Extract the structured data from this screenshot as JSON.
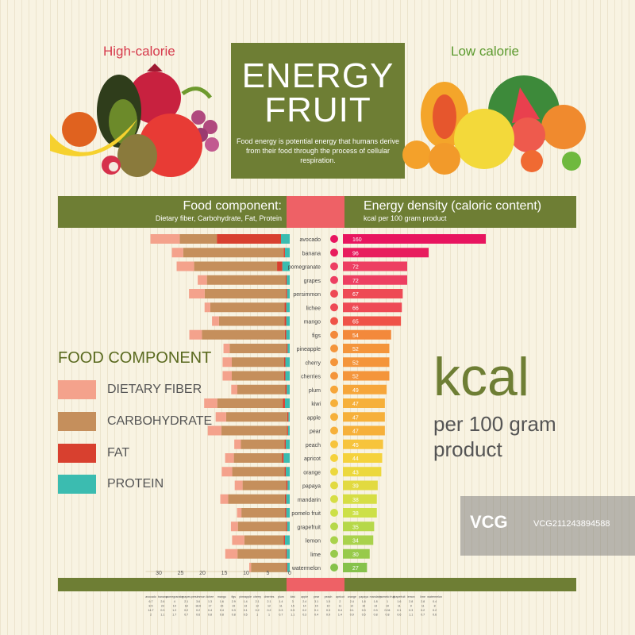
{
  "header": {
    "high_calorie": "High-calorie",
    "low_calorie": "Low calorie",
    "title_line1": "ENERGY",
    "title_line2": "FRUIT",
    "subtitle": "Food energy is potential energy that humans derive from their food through the process of cellular respiration."
  },
  "band": {
    "left_title": "Food component:",
    "left_sub": "Dietary fiber, Carbohydrate, Fat, Protein",
    "right_title": "Energy density (caloric content)",
    "right_sub": "kcal per 100 gram product"
  },
  "legend": {
    "title": "FOOD COMPONENT",
    "items": [
      {
        "label": "DIETARY FIBER",
        "color": "#f4a28c"
      },
      {
        "label": "CARBOHYDRATE",
        "color": "#c58f5c"
      },
      {
        "label": "FAT",
        "color": "#d8402f"
      },
      {
        "label": "PROTEIN",
        "color": "#3bbcb0"
      }
    ]
  },
  "kcal": {
    "big": "kcal",
    "sub": "per 100 gram product"
  },
  "watermark": {
    "logo": "VCG",
    "id": "VCG211243894588"
  },
  "chart_data": {
    "type": "bar",
    "categories": [
      "avocado",
      "banana",
      "pomegranate",
      "grapes",
      "persimmon",
      "lichee",
      "mango",
      "figs",
      "pineapple",
      "cherry",
      "cherries",
      "plum",
      "kiwi",
      "apple",
      "pear",
      "peach",
      "apricot",
      "orange",
      "papaya",
      "mandarin",
      "pomelo fruit",
      "grapefruit",
      "lemon",
      "lime",
      "watermelon"
    ],
    "kcal": [
      160,
      96,
      72,
      72,
      67,
      66,
      65,
      54,
      52,
      52,
      52,
      49,
      47,
      47,
      47,
      45,
      44,
      43,
      39,
      38,
      38,
      35,
      34,
      30,
      27
    ],
    "kcal_colors": [
      "#e8155f",
      "#e81d5e",
      "#ed3f62",
      "#ed3f62",
      "#ee4a55",
      "#ee4a55",
      "#ef5348",
      "#f3893b",
      "#f4953b",
      "#f4953b",
      "#f4953b",
      "#f6a63a",
      "#f6b03a",
      "#f6b03a",
      "#f6b03a",
      "#f7c43c",
      "#f5d23c",
      "#ecd83d",
      "#e2da40",
      "#d6de45",
      "#cde048",
      "#b6d849",
      "#a9d24b",
      "#98ca4b",
      "#86c24b"
    ],
    "components": {
      "dietary_fiber": [
        6.7,
        2.6,
        4,
        2.1,
        3.6,
        1.3,
        1.6,
        2.9,
        1.4,
        2.1,
        2.1,
        1.4,
        3,
        2.4,
        3.1,
        1.5,
        2,
        2.4,
        1.8,
        1.8,
        1,
        1.6,
        2.8,
        2.8,
        0.4
      ],
      "carbohydrate": [
        8.5,
        23,
        19,
        18,
        18.6,
        17,
        15,
        19,
        13,
        12,
        12,
        11,
        15,
        14,
        15,
        10,
        11,
        12,
        10,
        13,
        10,
        11,
        9,
        11,
        8
      ],
      "fat": [
        14.7,
        0.3,
        1.2,
        0.2,
        0.2,
        0.4,
        0.4,
        0.3,
        0.1,
        0.2,
        0.2,
        0.3,
        0.5,
        0.2,
        0.1,
        0.3,
        0.4,
        0.1,
        0.3,
        0.3,
        0.04,
        0.1,
        0.3,
        0.2,
        0.2
      ],
      "protein": [
        2,
        1.1,
        1.7,
        0.7,
        0.6,
        0.8,
        0.8,
        0.8,
        0.5,
        1,
        1,
        0.7,
        1.1,
        0.3,
        0.4,
        0.9,
        1.4,
        0.9,
        0.5,
        0.8,
        0.8,
        0.6,
        1.1,
        0.7,
        0.6
      ]
    },
    "component_axis": {
      "ticks": [
        30,
        25,
        20,
        15,
        10,
        5,
        0
      ],
      "direction": "leftward from center"
    },
    "kcal_axis_max": 160
  }
}
